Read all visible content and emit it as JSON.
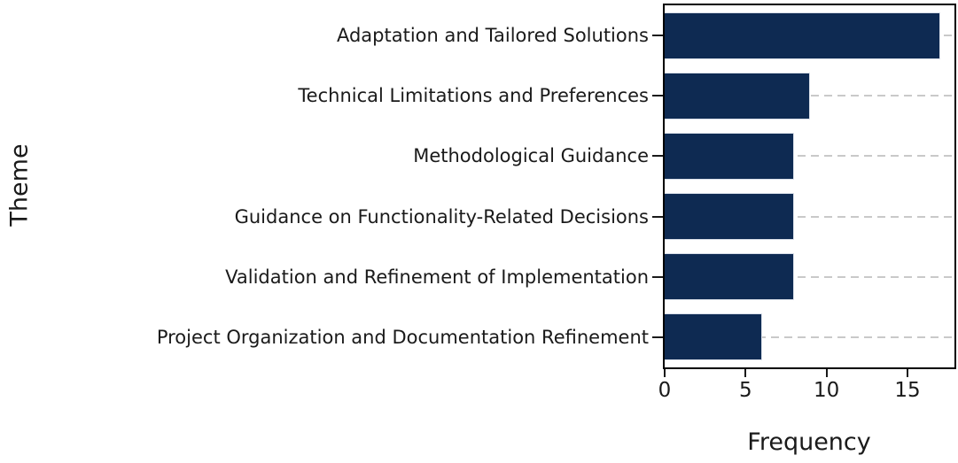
{
  "chart_data": {
    "type": "bar",
    "orientation": "horizontal",
    "title": "",
    "xlabel": "Frequency",
    "ylabel": "Theme",
    "categories": [
      "Adaptation and Tailored Solutions",
      "Technical Limitations and Preferences",
      "Methodological Guidance",
      "Guidance on Functionality-Related Decisions",
      "Validation and Refinement of Implementation",
      "Project Organization and Documentation Refinement"
    ],
    "values": [
      17,
      9,
      8,
      8,
      8,
      6
    ],
    "xticks": [
      0,
      5,
      10,
      15
    ],
    "xlim": [
      0,
      17.9
    ],
    "grid": "horizontal-dashed",
    "legend": "none",
    "colors": {
      "bar": "#0e2a52",
      "bar_edge": "#d9dfe9",
      "grid": "#c9c9c9",
      "frame": "#000000",
      "text": "#1a1a1a",
      "background": "#ffffff"
    }
  }
}
